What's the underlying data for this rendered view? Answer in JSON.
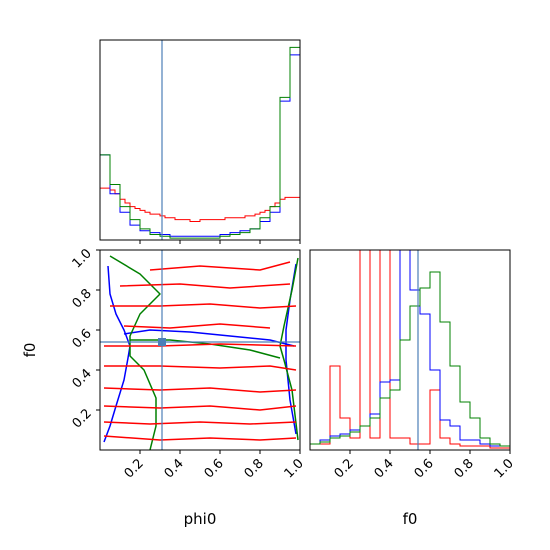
{
  "chart_data": {
    "type": "corner",
    "parameters": [
      "phi0",
      "f0"
    ],
    "truth": {
      "phi0": 0.31,
      "f0": 0.54
    },
    "truth_color": "#4c7fb8",
    "series_colors": [
      "#ff0000",
      "#0000ff",
      "#008000"
    ],
    "axes_ranges": {
      "phi0": [
        0.0,
        1.0
      ],
      "f0": [
        0.0,
        1.0
      ]
    },
    "tick_values": [
      0.2,
      0.4,
      0.6,
      0.8,
      1.0
    ],
    "tick_labels": [
      "0.2",
      "0.4",
      "0.6",
      "0.8",
      "1.0"
    ],
    "xlabels": {
      "phi0": "phi0",
      "f0": "f0"
    },
    "ylabels": {
      "f0": "f0"
    },
    "marginal_phi0": {
      "bin_edges": [
        0.0,
        0.025,
        0.05,
        0.075,
        0.1,
        0.125,
        0.15,
        0.175,
        0.2,
        0.225,
        0.25,
        0.275,
        0.3,
        0.325,
        0.35,
        0.375,
        0.4,
        0.425,
        0.45,
        0.475,
        0.5,
        0.525,
        0.55,
        0.575,
        0.6,
        0.625,
        0.65,
        0.675,
        0.7,
        0.725,
        0.75,
        0.775,
        0.8,
        0.825,
        0.85,
        0.875,
        0.9,
        0.925,
        0.95,
        0.975,
        1.0
      ],
      "series": [
        {
          "color": "#ff0000",
          "values": [
            0.28,
            0.28,
            0.27,
            0.25,
            0.22,
            0.2,
            0.18,
            0.17,
            0.16,
            0.15,
            0.14,
            0.14,
            0.13,
            0.12,
            0.12,
            0.11,
            0.11,
            0.11,
            0.1,
            0.1,
            0.11,
            0.11,
            0.11,
            0.11,
            0.11,
            0.12,
            0.12,
            0.12,
            0.12,
            0.13,
            0.13,
            0.14,
            0.15,
            0.16,
            0.18,
            0.2,
            0.22,
            0.23,
            0.23,
            0.23
          ]
        },
        {
          "color": "#0000ff",
          "values": [
            0.46,
            0.46,
            0.25,
            0.25,
            0.15,
            0.15,
            0.08,
            0.08,
            0.05,
            0.05,
            0.04,
            0.04,
            0.03,
            0.03,
            0.02,
            0.02,
            0.02,
            0.02,
            0.02,
            0.02,
            0.02,
            0.02,
            0.02,
            0.02,
            0.03,
            0.03,
            0.04,
            0.04,
            0.05,
            0.05,
            0.06,
            0.06,
            0.1,
            0.1,
            0.15,
            0.15,
            0.75,
            0.75,
            1.0,
            1.0
          ]
        },
        {
          "color": "#008000",
          "values": [
            0.46,
            0.46,
            0.3,
            0.3,
            0.18,
            0.18,
            0.11,
            0.11,
            0.06,
            0.06,
            0.03,
            0.03,
            0.02,
            0.02,
            0.01,
            0.01,
            0.01,
            0.01,
            0.01,
            0.01,
            0.01,
            0.01,
            0.01,
            0.01,
            0.02,
            0.02,
            0.03,
            0.03,
            0.04,
            0.04,
            0.06,
            0.06,
            0.12,
            0.12,
            0.18,
            0.18,
            0.77,
            0.77,
            1.04,
            1.04
          ]
        }
      ]
    },
    "marginal_f0": {
      "bin_edges": [
        0.0,
        0.05,
        0.1,
        0.15,
        0.2,
        0.25,
        0.3,
        0.35,
        0.4,
        0.45,
        0.5,
        0.55,
        0.6,
        0.65,
        0.7,
        0.75,
        0.8,
        0.85,
        0.9,
        0.95,
        1.0
      ],
      "series": [
        {
          "color": "#ff0000",
          "values": [
            0.03,
            0.03,
            0.42,
            0.16,
            0.06,
            1.2,
            0.06,
            1.2,
            0.06,
            0.06,
            0.03,
            0.03,
            0.3,
            0.06,
            0.03,
            0.02,
            0.02,
            0.02,
            0.01,
            0.01
          ]
        },
        {
          "color": "#0000ff",
          "values": [
            0.03,
            0.05,
            0.07,
            0.08,
            0.1,
            0.12,
            0.18,
            0.34,
            0.35,
            1.2,
            0.8,
            0.68,
            0.4,
            0.15,
            0.12,
            0.05,
            0.05,
            0.03,
            0.02,
            0.02
          ]
        },
        {
          "color": "#008000",
          "values": [
            0.03,
            0.04,
            0.06,
            0.07,
            0.09,
            0.12,
            0.16,
            0.26,
            0.3,
            0.55,
            0.72,
            0.81,
            0.89,
            0.64,
            0.42,
            0.24,
            0.16,
            0.06,
            0.03,
            0.02
          ]
        }
      ]
    },
    "joint_contours": [
      {
        "color": "#0000ff",
        "points": [
          [
            0.02,
            0.04
          ],
          [
            0.05,
            0.12
          ],
          [
            0.08,
            0.22
          ],
          [
            0.12,
            0.35
          ],
          [
            0.14,
            0.46
          ],
          [
            0.15,
            0.52
          ],
          [
            0.12,
            0.6
          ],
          [
            0.08,
            0.68
          ],
          [
            0.05,
            0.78
          ],
          [
            0.04,
            0.92
          ]
        ]
      },
      {
        "color": "#0000ff",
        "points": [
          [
            0.98,
            0.08
          ],
          [
            0.95,
            0.25
          ],
          [
            0.93,
            0.45
          ],
          [
            0.93,
            0.6
          ],
          [
            0.95,
            0.75
          ],
          [
            0.98,
            0.93
          ]
        ]
      },
      {
        "color": "#0000ff",
        "points": [
          [
            0.12,
            0.58
          ],
          [
            0.25,
            0.6
          ],
          [
            0.45,
            0.59
          ],
          [
            0.65,
            0.57
          ],
          [
            0.85,
            0.55
          ],
          [
            0.97,
            0.52
          ]
        ]
      },
      {
        "color": "#008000",
        "points": [
          [
            0.25,
            0.0
          ],
          [
            0.28,
            0.12
          ],
          [
            0.28,
            0.26
          ],
          [
            0.22,
            0.4
          ],
          [
            0.15,
            0.47
          ],
          [
            0.15,
            0.57
          ],
          [
            0.2,
            0.68
          ],
          [
            0.3,
            0.78
          ],
          [
            0.2,
            0.88
          ],
          [
            0.05,
            0.97
          ]
        ]
      },
      {
        "color": "#008000",
        "points": [
          [
            0.99,
            0.05
          ],
          [
            0.96,
            0.3
          ],
          [
            0.92,
            0.45
          ],
          [
            0.9,
            0.52
          ],
          [
            0.92,
            0.62
          ],
          [
            0.96,
            0.8
          ],
          [
            0.99,
            0.96
          ]
        ]
      },
      {
        "color": "#008000",
        "points": [
          [
            0.15,
            0.55
          ],
          [
            0.35,
            0.55
          ],
          [
            0.55,
            0.53
          ],
          [
            0.75,
            0.5
          ],
          [
            0.9,
            0.46
          ]
        ]
      },
      {
        "color": "#ff0000",
        "points": [
          [
            0.02,
            0.07
          ],
          [
            0.3,
            0.05
          ],
          [
            0.55,
            0.06
          ],
          [
            0.8,
            0.05
          ],
          [
            0.98,
            0.06
          ]
        ]
      },
      {
        "color": "#ff0000",
        "points": [
          [
            0.02,
            0.14
          ],
          [
            0.25,
            0.13
          ],
          [
            0.5,
            0.14
          ],
          [
            0.75,
            0.13
          ],
          [
            0.98,
            0.14
          ]
        ]
      },
      {
        "color": "#ff0000",
        "points": [
          [
            0.02,
            0.22
          ],
          [
            0.3,
            0.21
          ],
          [
            0.55,
            0.22
          ],
          [
            0.8,
            0.2
          ],
          [
            0.98,
            0.22
          ]
        ]
      },
      {
        "color": "#ff0000",
        "points": [
          [
            0.02,
            0.31
          ],
          [
            0.3,
            0.3
          ],
          [
            0.55,
            0.31
          ],
          [
            0.8,
            0.29
          ],
          [
            0.98,
            0.3
          ]
        ]
      },
      {
        "color": "#ff0000",
        "points": [
          [
            0.02,
            0.42
          ],
          [
            0.3,
            0.42
          ],
          [
            0.6,
            0.41
          ],
          [
            0.85,
            0.42
          ],
          [
            0.98,
            0.4
          ]
        ]
      },
      {
        "color": "#ff0000",
        "points": [
          [
            0.02,
            0.52
          ],
          [
            0.3,
            0.52
          ],
          [
            0.6,
            0.53
          ],
          [
            0.98,
            0.52
          ]
        ]
      },
      {
        "color": "#ff0000",
        "points": [
          [
            0.12,
            0.62
          ],
          [
            0.35,
            0.61
          ],
          [
            0.6,
            0.63
          ],
          [
            0.85,
            0.61
          ]
        ]
      },
      {
        "color": "#ff0000",
        "points": [
          [
            0.05,
            0.72
          ],
          [
            0.3,
            0.72
          ],
          [
            0.55,
            0.73
          ],
          [
            0.8,
            0.71
          ],
          [
            0.98,
            0.72
          ]
        ]
      },
      {
        "color": "#ff0000",
        "points": [
          [
            0.1,
            0.82
          ],
          [
            0.4,
            0.83
          ],
          [
            0.65,
            0.81
          ],
          [
            0.95,
            0.83
          ]
        ]
      },
      {
        "color": "#ff0000",
        "points": [
          [
            0.25,
            0.9
          ],
          [
            0.5,
            0.92
          ],
          [
            0.8,
            0.9
          ],
          [
            0.95,
            0.94
          ]
        ]
      }
    ]
  }
}
